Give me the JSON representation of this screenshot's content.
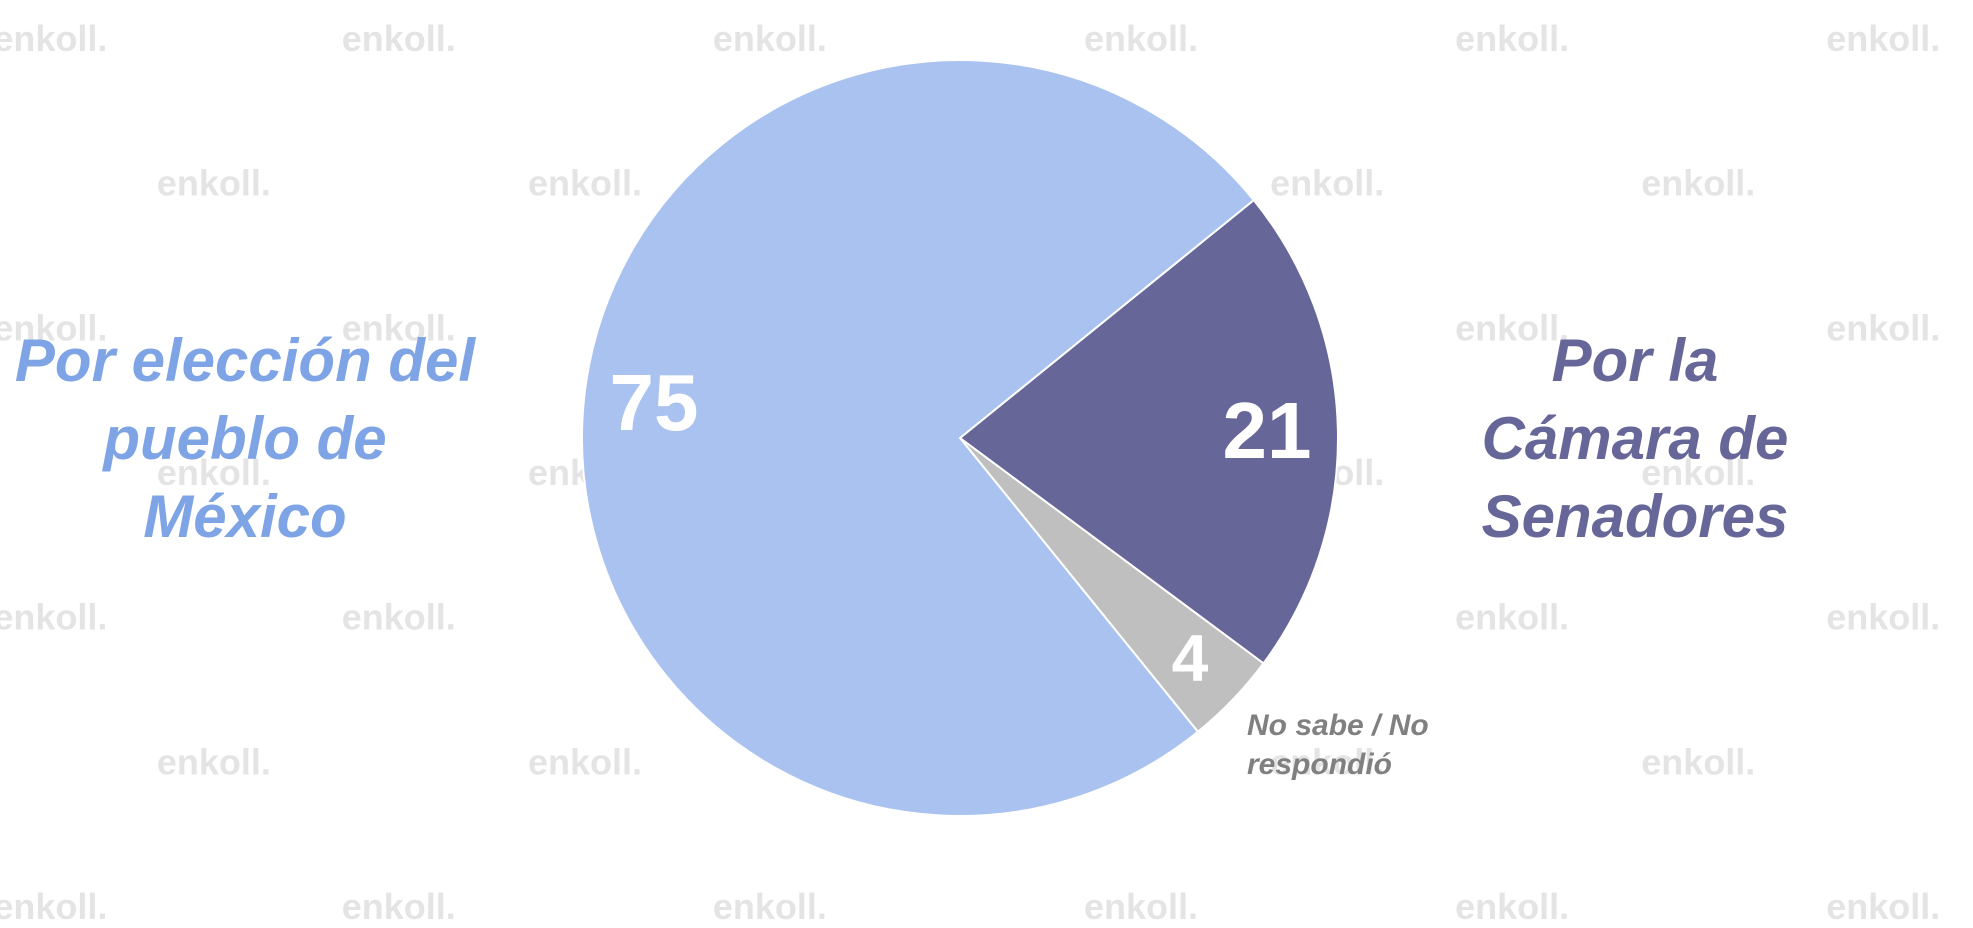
{
  "watermark": "enkoll.",
  "chart_data": {
    "type": "pie",
    "categories": [
      "Por la Cámara de Senadores",
      "No sabe / No respondió",
      "Por elección del pueblo de México"
    ],
    "values": [
      21,
      4,
      75
    ],
    "colors": [
      "#676699",
      "#bfbfbf",
      "#a9c2ef"
    ],
    "label_colors": [
      "#676699",
      "#808080",
      "#7ea4e6"
    ],
    "start_angle": 51
  }
}
